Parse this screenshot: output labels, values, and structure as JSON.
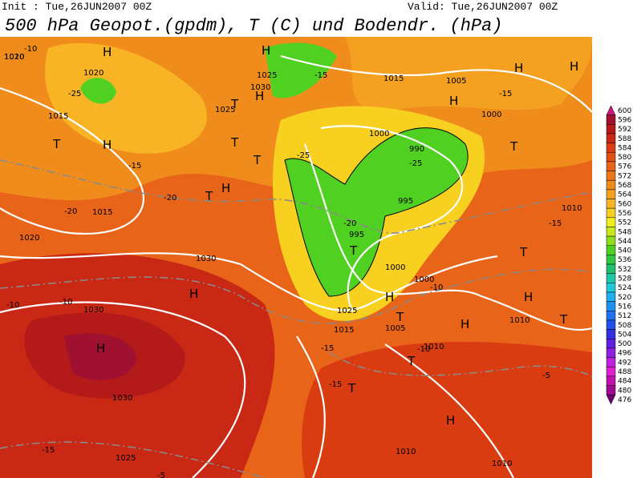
{
  "header": {
    "init": "Init : Tue,26JUN2007 00Z",
    "valid": "Valid: Tue,26JUN2007 00Z",
    "title": "500 hPa Geopot.(gpdm), T (C) und Bodendr. (hPa)"
  },
  "colorbar": {
    "levels": [
      600,
      596,
      592,
      588,
      584,
      580,
      576,
      572,
      568,
      564,
      560,
      556,
      552,
      548,
      544,
      540,
      536,
      532,
      528,
      524,
      520,
      516,
      512,
      508,
      504,
      500,
      496,
      492,
      488,
      484,
      480,
      476
    ],
    "colors": [
      "#c8187a",
      "#a01030",
      "#b41a1a",
      "#c82814",
      "#d83c10",
      "#e05010",
      "#e86418",
      "#ec7818",
      "#f08c1c",
      "#f4a020",
      "#f8b424",
      "#f8d020",
      "#f0ec20",
      "#c8e81c",
      "#90dc20",
      "#50d020",
      "#30c840",
      "#20c070",
      "#20c8a8",
      "#20c8d8",
      "#20b0f0",
      "#2090f0",
      "#2070f0",
      "#2050e8",
      "#3030e0",
      "#6020e0",
      "#9020e0",
      "#c020e0",
      "#e020d0",
      "#c010b0",
      "#a00890",
      "#700070"
    ]
  },
  "map_labels": [
    "H",
    "H",
    "T",
    "H",
    "T",
    "H",
    "T",
    "T",
    "H",
    "T",
    "H",
    "T",
    "H",
    "H",
    "T",
    "H",
    "T",
    "H",
    "T",
    "H",
    "H",
    "H",
    "T",
    "T",
    "H",
    "T",
    "1020",
    "1015",
    "1010",
    "1020",
    "1025",
    "1030",
    "1025",
    "1015",
    "1005",
    "1000",
    "1000",
    "990",
    "995",
    "995",
    "1000",
    "1000",
    "1005",
    "1010",
    "1010",
    "1015",
    "1025",
    "1030",
    "1030",
    "1030",
    "1025",
    "1020",
    "1015",
    "1010",
    "1010",
    "1010",
    "-10",
    "-15",
    "-20",
    "-25",
    "-25",
    "-15",
    "-10",
    "-20",
    "-15",
    "-15",
    "-10",
    "-5",
    "-5",
    "-10",
    "-15",
    "-15",
    "-20",
    "-25",
    "-15",
    "-10"
  ]
}
